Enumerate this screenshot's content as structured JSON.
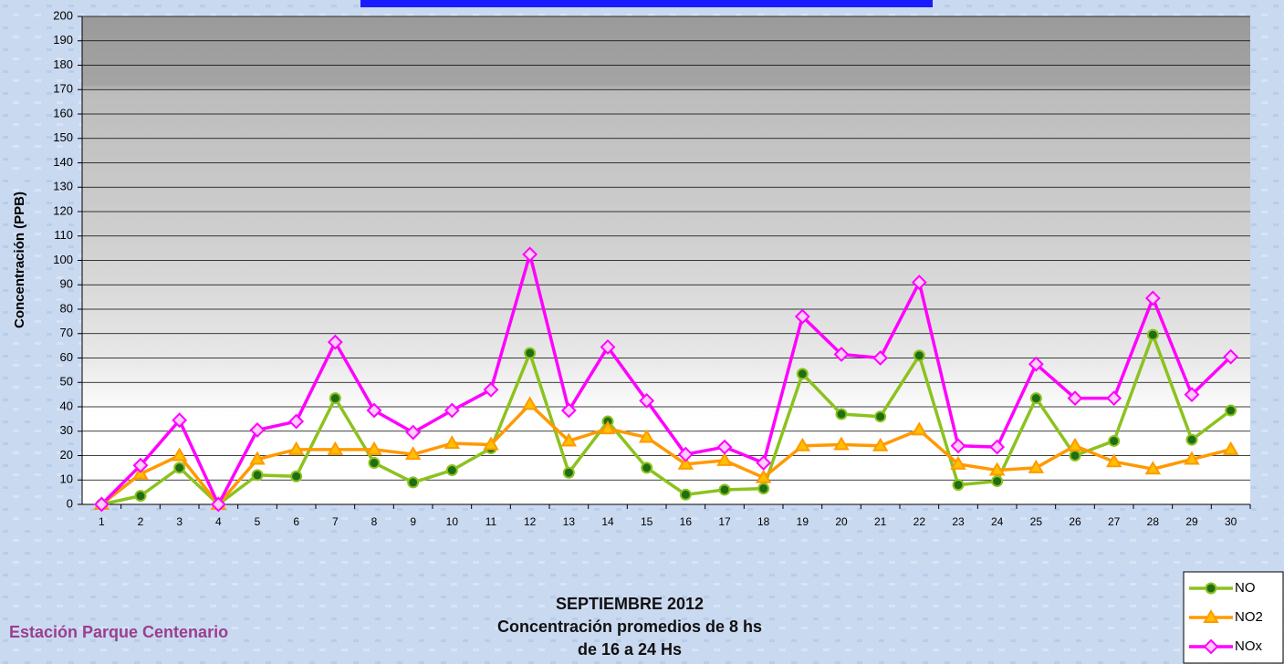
{
  "chart_data": {
    "type": "line",
    "y_label": "Concentración  (PPB)",
    "title_lines": [
      "SEPTIEMBRE 2012",
      "Concentración promedios de 8 hs",
      "de 16 a 24 Hs"
    ],
    "station": "Estación Parque Centenario",
    "categories": [
      1,
      2,
      3,
      4,
      5,
      6,
      7,
      8,
      9,
      10,
      11,
      12,
      13,
      14,
      15,
      16,
      17,
      18,
      19,
      20,
      21,
      22,
      23,
      24,
      25,
      26,
      27,
      28,
      29,
      30
    ],
    "ylim": [
      0,
      200
    ],
    "yticks": [
      0,
      10,
      20,
      30,
      40,
      50,
      60,
      70,
      80,
      90,
      100,
      110,
      120,
      130,
      140,
      150,
      160,
      170,
      180,
      190,
      200
    ],
    "grid": true,
    "legend": "bottom-right",
    "series": [
      {
        "name": "NO",
        "color": "#8cc21e",
        "marker": "circle",
        "marker_color": "#1f6e14",
        "values": [
          0,
          3.5,
          15,
          0,
          12,
          11.5,
          43.5,
          17,
          9,
          14,
          23,
          62,
          13,
          34,
          15,
          4,
          6,
          6.5,
          53.5,
          37,
          36,
          61,
          8,
          9.5,
          43.5,
          20,
          26,
          69.5,
          26.5,
          38.5
        ]
      },
      {
        "name": "NO2",
        "color": "#ff9900",
        "marker": "triangle",
        "marker_color": "#ffc000",
        "values": [
          0,
          12.5,
          20,
          0,
          18.5,
          22.5,
          22.5,
          22.5,
          20.5,
          25,
          24.5,
          41,
          26,
          31,
          27.5,
          16.5,
          18,
          11,
          24,
          24.5,
          24,
          30.5,
          16.5,
          14,
          15,
          24,
          17.5,
          14.5,
          18.5,
          22.5
        ]
      },
      {
        "name": "NOx",
        "color": "#ff00ff",
        "marker": "diamond",
        "marker_color": "#ffccff",
        "values": [
          0,
          16,
          34.5,
          0,
          30.5,
          34,
          66.5,
          38.5,
          29.5,
          38.5,
          47,
          102.5,
          38.5,
          64.5,
          42.5,
          20.5,
          23.5,
          17,
          77,
          61.5,
          60,
          91,
          24,
          23.5,
          57.5,
          43.5,
          43.5,
          84.5,
          45,
          60.5
        ]
      }
    ]
  }
}
